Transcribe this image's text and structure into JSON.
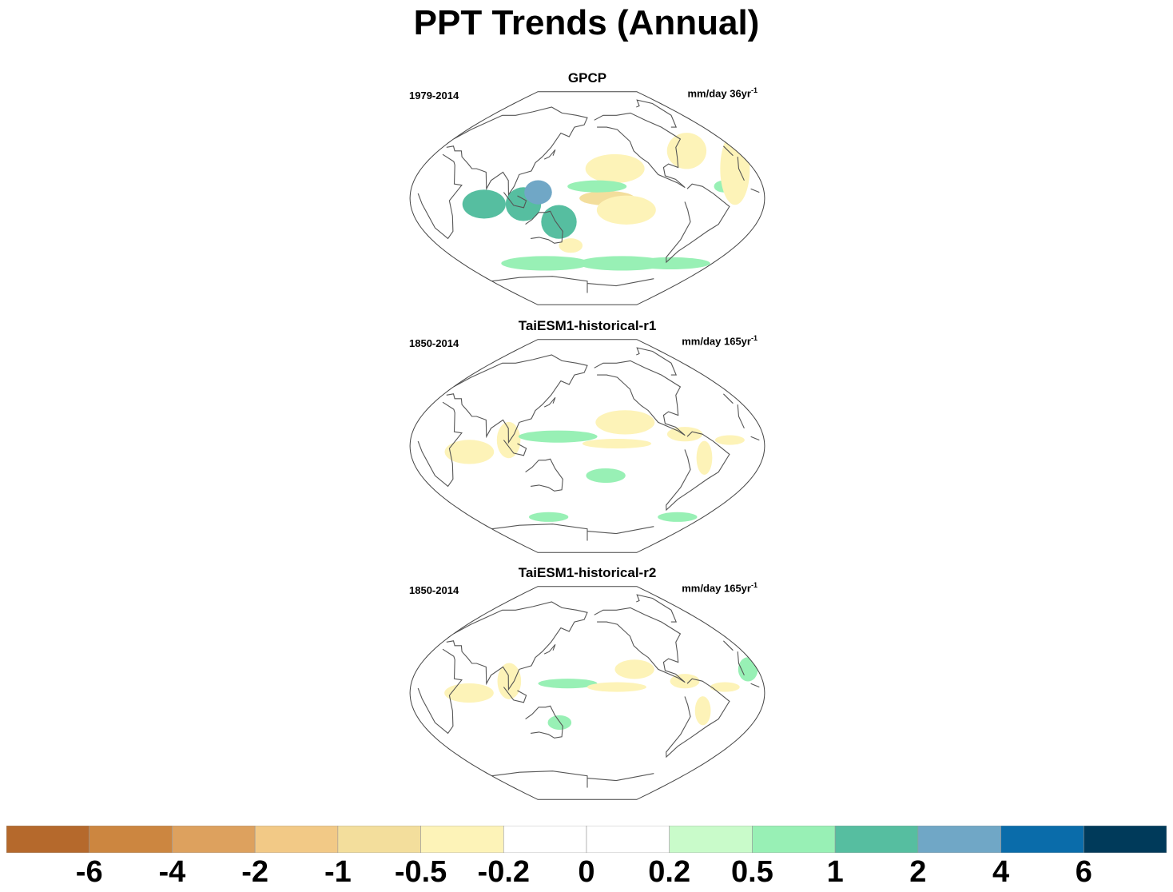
{
  "figure": {
    "title": "PPT Trends (Annual)"
  },
  "panels": [
    {
      "name": "GPCP",
      "period": "1979-2014",
      "units": "mm/day 36yr",
      "units_exp": "-1",
      "anomalies": [
        {
          "lon": 115,
          "lat": -5,
          "rx": 18,
          "ry": 14,
          "level": 1
        },
        {
          "lon": 130,
          "lat": 5,
          "rx": 14,
          "ry": 10,
          "level": 2
        },
        {
          "lon": 75,
          "lat": -5,
          "rx": 22,
          "ry": 12,
          "level": 1
        },
        {
          "lon": 150,
          "lat": -20,
          "rx": 18,
          "ry": 14,
          "level": 1
        },
        {
          "lon": -160,
          "lat": 0,
          "rx": 28,
          "ry": 6,
          "level": -1
        },
        {
          "lon": -140,
          "lat": -10,
          "rx": 30,
          "ry": 12,
          "level": -0.5
        },
        {
          "lon": -150,
          "lat": 25,
          "rx": 30,
          "ry": 12,
          "level": -0.5
        },
        {
          "lon": -170,
          "lat": 10,
          "rx": 30,
          "ry": 5,
          "level": 0.5
        },
        {
          "lon": -60,
          "lat": 40,
          "rx": 20,
          "ry": 15,
          "level": -0.5
        },
        {
          "lon": -40,
          "lat": 10,
          "rx": 10,
          "ry": 5,
          "level": 0.5
        },
        {
          "lon": -20,
          "lat": 25,
          "rx": 15,
          "ry": 30,
          "level": -0.5
        },
        {
          "lon": -60,
          "lat": -55,
          "rx": 40,
          "ry": 5,
          "level": 0.5
        },
        {
          "lon": -130,
          "lat": -55,
          "rx": 45,
          "ry": 6,
          "level": 0.5
        },
        {
          "lon": 120,
          "lat": -55,
          "rx": 45,
          "ry": 6,
          "level": 0.5
        },
        {
          "lon": 160,
          "lat": -40,
          "rx": 12,
          "ry": 6,
          "level": -0.5
        }
      ]
    },
    {
      "name": "TaiESM1-historical-r1",
      "period": "1850-2014",
      "units": "mm/day 165yr",
      "units_exp": "-1",
      "anomalies": [
        {
          "lon": 100,
          "lat": 5,
          "rx": 12,
          "ry": 15,
          "level": -0.5
        },
        {
          "lon": 60,
          "lat": -5,
          "rx": 25,
          "ry": 10,
          "level": -0.5
        },
        {
          "lon": 150,
          "lat": 8,
          "rx": 40,
          "ry": 5,
          "level": 0.5
        },
        {
          "lon": -150,
          "lat": 2,
          "rx": 35,
          "ry": 4,
          "level": -0.5
        },
        {
          "lon": -140,
          "lat": 20,
          "rx": 30,
          "ry": 10,
          "level": -0.5
        },
        {
          "lon": -80,
          "lat": 10,
          "rx": 18,
          "ry": 6,
          "level": -0.5
        },
        {
          "lon": -35,
          "lat": 5,
          "rx": 15,
          "ry": 4,
          "level": -0.5
        },
        {
          "lon": -60,
          "lat": -10,
          "rx": 8,
          "ry": 14,
          "level": -0.5
        },
        {
          "lon": -160,
          "lat": -25,
          "rx": 20,
          "ry": 6,
          "level": 0.5
        },
        {
          "lon": 120,
          "lat": -60,
          "rx": 20,
          "ry": 4,
          "level": 0.5
        },
        {
          "lon": -40,
          "lat": -60,
          "rx": 20,
          "ry": 4,
          "level": 0.5
        }
      ]
    },
    {
      "name": "TaiESM1-historical-r2",
      "period": "1850-2014",
      "units": "mm/day 165yr",
      "units_exp": "-1",
      "anomalies": [
        {
          "lon": 100,
          "lat": 10,
          "rx": 12,
          "ry": 15,
          "level": -0.5
        },
        {
          "lon": 60,
          "lat": 0,
          "rx": 25,
          "ry": 8,
          "level": -0.5
        },
        {
          "lon": 160,
          "lat": 8,
          "rx": 30,
          "ry": 4,
          "level": 0.5
        },
        {
          "lon": -150,
          "lat": 5,
          "rx": 30,
          "ry": 4,
          "level": -0.5
        },
        {
          "lon": -130,
          "lat": 20,
          "rx": 20,
          "ry": 8,
          "level": -0.5
        },
        {
          "lon": -80,
          "lat": 10,
          "rx": 15,
          "ry": 6,
          "level": -0.5
        },
        {
          "lon": -40,
          "lat": 5,
          "rx": 15,
          "ry": 4,
          "level": -0.5
        },
        {
          "lon": 150,
          "lat": -25,
          "rx": 12,
          "ry": 6,
          "level": 0.5
        },
        {
          "lon": -60,
          "lat": -15,
          "rx": 8,
          "ry": 12,
          "level": -0.5
        },
        {
          "lon": -10,
          "lat": 20,
          "rx": 10,
          "ry": 10,
          "level": 0.5
        }
      ]
    }
  ],
  "colorbar": {
    "colors": [
      "#b5692c",
      "#cc8640",
      "#dda15e",
      "#f2c986",
      "#f3de9c",
      "#fdf3b8",
      "#ffffff",
      "#ffffff",
      "#c9fbca",
      "#98f0b5",
      "#56bea0",
      "#70a7c6",
      "#0a6caa",
      "#003a5a"
    ],
    "labels": [
      "-6",
      "-4",
      "-2",
      "-1",
      "-0.5",
      "-0.2",
      "0",
      "0.2",
      "0.5",
      "1",
      "2",
      "4",
      "6"
    ],
    "levels": [
      -8,
      -6,
      -4,
      -2,
      -1,
      -0.5,
      -0.2,
      0,
      0.2,
      0.5,
      1,
      2,
      4,
      6
    ]
  }
}
